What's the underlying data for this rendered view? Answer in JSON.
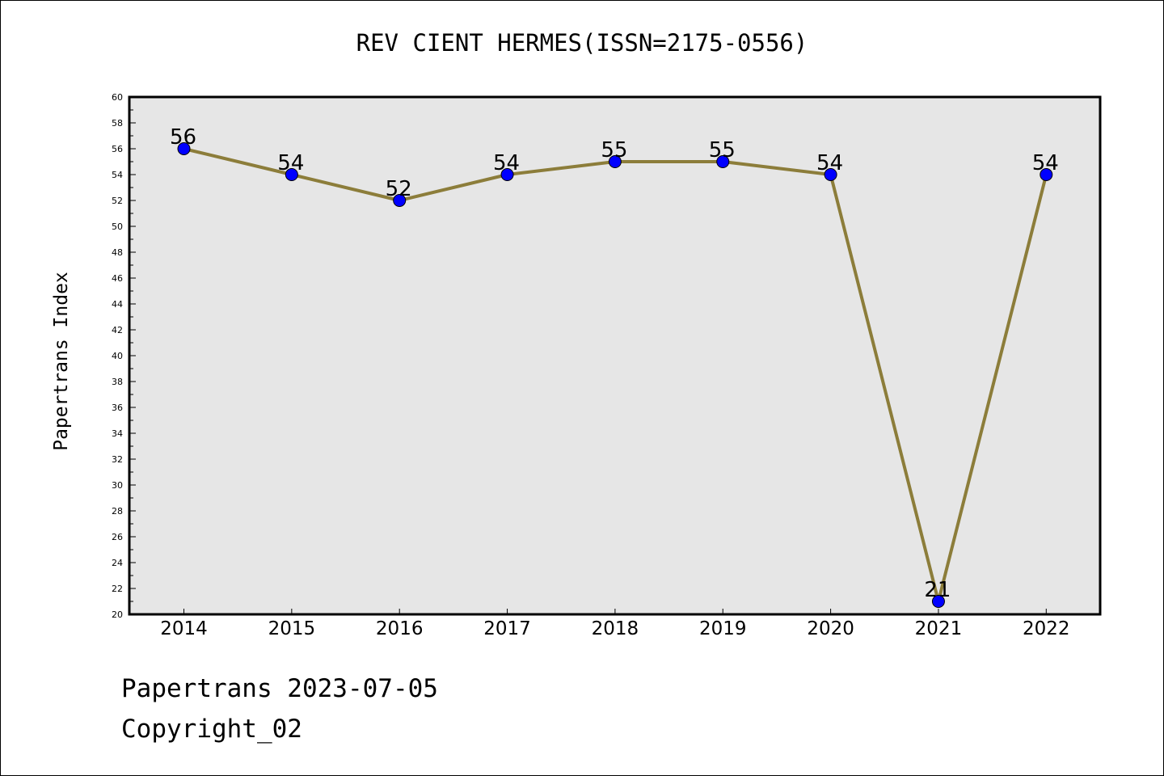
{
  "chart_data": {
    "type": "line",
    "title": "REV CIENT HERMES(ISSN=2175-0556)",
    "ylabel": "Papertrans Index",
    "xlabel": "",
    "categories": [
      "2014",
      "2015",
      "2016",
      "2017",
      "2018",
      "2019",
      "2020",
      "2021",
      "2022"
    ],
    "series": [
      {
        "values": [
          56,
          54,
          52,
          54,
          55,
          55,
          54,
          21,
          54
        ]
      }
    ],
    "data_labels": [
      "56",
      "54",
      "52",
      "54",
      "55",
      "55",
      "54",
      "21",
      "54"
    ],
    "ylim": [
      20,
      60
    ],
    "yticks": [
      "20",
      "22",
      "24",
      "26",
      "28",
      "30",
      "32",
      "34",
      "36",
      "38",
      "40",
      "42",
      "44",
      "46",
      "48",
      "50",
      "52",
      "54",
      "56",
      "58",
      "60"
    ],
    "grid": false,
    "colors": {
      "line": "#8c7d3a",
      "marker": "#0000ff",
      "plot_bg": "#e6e6e6"
    }
  },
  "footer": {
    "line1": "Papertrans 2023-07-05",
    "line2": "Copyright_02"
  }
}
